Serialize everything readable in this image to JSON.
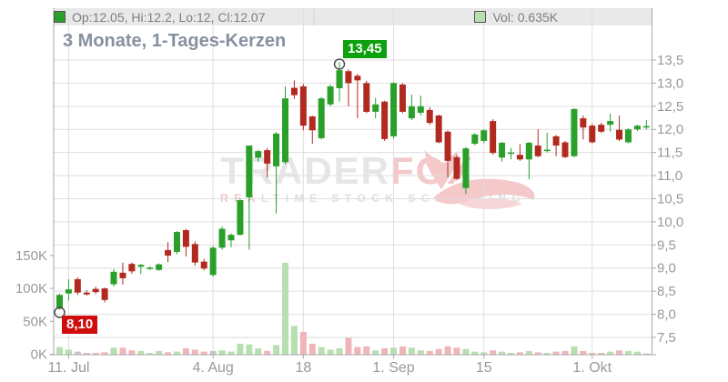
{
  "legend": {
    "ohlc_label": "Op:12.05, Hi:12.2, Lo:12, Cl:12.07",
    "vol_label": "Vol: 0.635K"
  },
  "title": "3 Monate, 1-Tages-Kerzen",
  "annotations": {
    "high_label": "13,45",
    "low_label": "8,10"
  },
  "watermark": {
    "part_gray": "TRADER",
    "part_red": "FOX",
    "subtitle_red": "REA",
    "subtitle_gray": "LTIME STOCK SCREENING"
  },
  "chart_data": {
    "type": "candlestick_with_volume",
    "title": "3 Monate, 1-Tages-Kerzen",
    "colors": {
      "up": "#2aa02a",
      "down": "#b12a20",
      "vol_up": "#b7dfb0",
      "vol_down": "#f0b5b9",
      "vol_neutral": "#c6c6c6",
      "high_label_bg": "#0da10d",
      "low_label_bg": "#d00d0d",
      "grid": "#dedede",
      "axis_line": "#a8a8a8",
      "axis_text": "#999999",
      "legend_bg": "#e9e9e9"
    },
    "price_axis": {
      "side": "right",
      "min": 7.5,
      "max": 13.5,
      "ticks": [
        {
          "value": 13.5,
          "label": "13,5"
        },
        {
          "value": 13.0,
          "label": "13,0"
        },
        {
          "value": 12.5,
          "label": "12,5"
        },
        {
          "value": 12.0,
          "label": "12,0"
        },
        {
          "value": 11.5,
          "label": "11,5"
        },
        {
          "value": 11.0,
          "label": "11,0"
        },
        {
          "value": 10.5,
          "label": "10,5"
        },
        {
          "value": 10.0,
          "label": "10,0"
        },
        {
          "value": 9.5,
          "label": "9,5"
        },
        {
          "value": 9.0,
          "label": "9,0"
        },
        {
          "value": 8.5,
          "label": "8,5"
        },
        {
          "value": 8.0,
          "label": "8,0"
        },
        {
          "value": 7.5,
          "label": "7,5"
        }
      ]
    },
    "volume_axis": {
      "side": "left",
      "unit": "K",
      "ticks": [
        {
          "value": 150,
          "label": "150K"
        },
        {
          "value": 100,
          "label": "100K"
        },
        {
          "value": 50,
          "label": "50K"
        },
        {
          "value": 0,
          "label": "0K"
        }
      ]
    },
    "x_axis": {
      "tick_labels": [
        "11. Jul",
        "4. Aug",
        "18",
        "1. Sep",
        "15",
        "1. Okt"
      ],
      "tick_indices": [
        1,
        17,
        27,
        37,
        47,
        59
      ]
    },
    "high_marker": {
      "index": 31,
      "price": 13.45,
      "label": "13,45"
    },
    "low_marker": {
      "index": 0,
      "price": 8.1,
      "label": "8,10"
    },
    "candles_format": [
      "open",
      "high",
      "low",
      "close",
      "volume_K"
    ],
    "candles": [
      [
        8.12,
        8.45,
        8.1,
        8.42,
        11
      ],
      [
        8.45,
        8.76,
        8.3,
        8.54,
        7
      ],
      [
        8.76,
        8.8,
        8.42,
        8.47,
        4
      ],
      [
        8.47,
        8.52,
        8.4,
        8.43,
        2
      ],
      [
        8.55,
        8.6,
        8.44,
        8.48,
        2
      ],
      [
        8.56,
        8.58,
        8.26,
        8.31,
        3
      ],
      [
        8.65,
        8.98,
        8.6,
        8.92,
        10
      ],
      [
        8.9,
        9.12,
        8.64,
        8.78,
        10
      ],
      [
        9.09,
        9.12,
        8.88,
        8.93,
        6
      ],
      [
        9.03,
        9.09,
        8.87,
        9.07,
        5
      ],
      [
        9.0,
        9.04,
        8.96,
        9.01,
        2
      ],
      [
        8.96,
        9.1,
        8.94,
        9.08,
        5
      ],
      [
        9.39,
        9.56,
        9.13,
        9.27,
        3
      ],
      [
        9.35,
        9.8,
        9.3,
        9.78,
        4
      ],
      [
        9.82,
        9.85,
        9.25,
        9.46,
        9
      ],
      [
        9.52,
        9.58,
        9.05,
        9.12,
        7
      ],
      [
        9.14,
        9.2,
        8.95,
        8.99,
        4
      ],
      [
        8.85,
        9.48,
        8.81,
        9.44,
        5
      ],
      [
        9.44,
        9.9,
        9.4,
        9.85,
        6
      ],
      [
        9.6,
        9.75,
        9.45,
        9.72,
        4
      ],
      [
        9.72,
        10.5,
        9.7,
        10.47,
        16
      ],
      [
        10.53,
        11.65,
        9.4,
        11.65,
        15
      ],
      [
        11.39,
        11.56,
        11.3,
        11.53,
        9
      ],
      [
        11.55,
        11.6,
        10.96,
        11.26,
        5
      ],
      [
        11.2,
        11.94,
        10.18,
        11.91,
        14
      ],
      [
        11.29,
        12.93,
        11.25,
        12.67,
        139
      ],
      [
        12.9,
        13.06,
        12.66,
        12.74,
        43
      ],
      [
        12.93,
        12.98,
        11.98,
        12.08,
        34
      ],
      [
        12.28,
        12.3,
        11.69,
        11.98,
        16
      ],
      [
        11.81,
        12.7,
        11.78,
        12.67,
        11
      ],
      [
        12.54,
        12.97,
        12.5,
        12.93,
        7
      ],
      [
        12.89,
        13.45,
        12.6,
        13.28,
        9
      ],
      [
        13.26,
        13.3,
        12.5,
        13.0,
        25
      ],
      [
        13.16,
        13.2,
        12.24,
        13.06,
        11
      ],
      [
        13.0,
        13.05,
        12.35,
        12.38,
        12
      ],
      [
        12.38,
        12.68,
        12.24,
        12.54,
        6
      ],
      [
        12.6,
        12.62,
        11.75,
        11.79,
        9
      ],
      [
        11.85,
        13.02,
        11.8,
        13.0,
        10
      ],
      [
        12.97,
        13.0,
        12.35,
        12.38,
        12
      ],
      [
        12.24,
        12.75,
        12.2,
        12.5,
        10
      ],
      [
        12.36,
        12.73,
        12.3,
        12.5,
        6
      ],
      [
        12.42,
        12.48,
        12.1,
        12.14,
        5
      ],
      [
        12.3,
        12.32,
        11.7,
        11.72,
        8
      ],
      [
        11.95,
        11.98,
        10.96,
        11.32,
        12
      ],
      [
        11.4,
        11.45,
        10.9,
        10.93,
        10
      ],
      [
        10.73,
        11.62,
        10.6,
        11.59,
        8
      ],
      [
        11.69,
        11.92,
        11.65,
        11.89,
        4
      ],
      [
        11.75,
        12.0,
        11.7,
        11.98,
        3
      ],
      [
        12.18,
        12.22,
        11.45,
        11.49,
        6
      ],
      [
        11.39,
        11.73,
        11.3,
        11.71,
        4
      ],
      [
        11.47,
        11.6,
        11.35,
        11.5,
        2
      ],
      [
        11.45,
        11.68,
        11.32,
        11.35,
        3
      ],
      [
        11.35,
        11.73,
        10.92,
        11.71,
        5
      ],
      [
        11.65,
        12.0,
        11.4,
        11.42,
        3
      ],
      [
        11.54,
        11.93,
        11.5,
        11.56,
        2
      ],
      [
        11.85,
        11.88,
        11.42,
        11.65,
        4
      ],
      [
        11.72,
        11.75,
        11.38,
        11.4,
        5
      ],
      [
        11.42,
        12.46,
        11.4,
        12.44,
        12
      ],
      [
        12.24,
        12.3,
        11.78,
        12.04,
        5
      ],
      [
        12.08,
        12.12,
        11.7,
        11.72,
        2
      ],
      [
        12.1,
        12.14,
        11.92,
        11.95,
        2
      ],
      [
        12.1,
        12.34,
        11.95,
        12.18,
        4
      ],
      [
        11.99,
        12.3,
        11.75,
        11.78,
        6
      ],
      [
        11.72,
        12.02,
        11.7,
        12.0,
        5
      ],
      [
        12.0,
        12.1,
        11.96,
        12.08,
        4
      ],
      [
        12.05,
        12.2,
        12.0,
        12.07,
        0.635
      ]
    ],
    "volume_color_overrides": {
      "2": "neutral",
      "17": "neutral",
      "26": "up"
    }
  }
}
